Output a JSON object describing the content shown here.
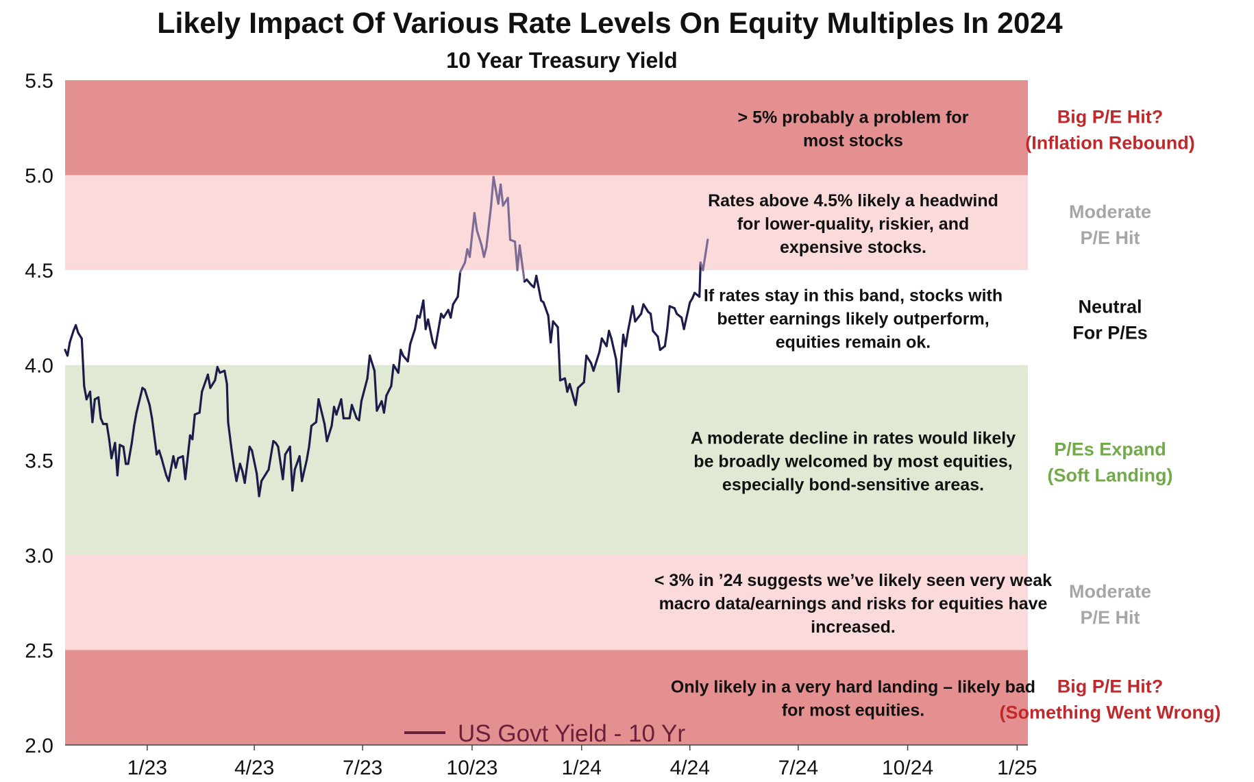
{
  "chart_data": {
    "type": "line",
    "title": "Likely Impact Of Various Rate Levels On Equity Multiples In 2024",
    "subtitle": "10 Year Treasury Yield",
    "xlabel": "",
    "ylabel": "",
    "ylim": [
      2.0,
      5.5
    ],
    "yticks": [
      "5.5",
      "5.0",
      "4.5",
      "4.0",
      "3.5",
      "3.0",
      "2.5",
      "2.0"
    ],
    "xticks": [
      {
        "label": "1/23",
        "x": "2023-01-01"
      },
      {
        "label": "4/23",
        "x": "2023-04-01"
      },
      {
        "label": "7/23",
        "x": "2023-07-01"
      },
      {
        "label": "10/23",
        "x": "2023-10-01"
      },
      {
        "label": "1/24",
        "x": "2024-01-01"
      },
      {
        "label": "4/24",
        "x": "2024-04-01"
      },
      {
        "label": "7/24",
        "x": "2024-07-01"
      },
      {
        "label": "10/24",
        "x": "2024-10-01"
      },
      {
        "label": "1/25",
        "x": "2025-01-01"
      }
    ],
    "xlim": [
      "2022-10-24",
      "2025-01-10"
    ],
    "grid": false,
    "legend": {
      "position": "bottom-center",
      "label": "US Govt Yield - 10 Yr",
      "color": "#6b1f3a"
    },
    "line_colors": {
      "main": "#1c1c4a",
      "in_upper_band": "#7d6b96"
    },
    "bands": [
      {
        "from": 5.0,
        "to": 5.5,
        "color": "#e49090",
        "note": [
          "> 5% probably a problem for",
          "most stocks"
        ],
        "side_label": [
          "Big P/E Hit?",
          "(Inflation Rebound)"
        ],
        "side_color": "#c0282b"
      },
      {
        "from": 4.5,
        "to": 5.0,
        "color": "#fadadb",
        "note": [
          "Rates above 4.5% likely a headwind",
          "for lower-quality, riskier, and",
          "expensive stocks."
        ],
        "side_label": [
          "Moderate",
          "P/E Hit"
        ],
        "side_color": "#a6a6a6"
      },
      {
        "from": 4.0,
        "to": 4.5,
        "color": "#ffffff",
        "note": [
          "If rates stay in this band, stocks with",
          "better earnings likely outperform,",
          "equities remain ok."
        ],
        "side_label": [
          "Neutral",
          "For P/Es"
        ],
        "side_color": "#111111"
      },
      {
        "from": 3.0,
        "to": 4.0,
        "color": "#dfe9d3",
        "note": [
          "A moderate decline in rates would likely",
          "be broadly welcomed by most equities,",
          "especially bond-sensitive areas."
        ],
        "side_label": [
          "P/Es Expand",
          "(Soft Landing)"
        ],
        "side_color": "#72a94a"
      },
      {
        "from": 2.5,
        "to": 3.0,
        "color": "#fadadb",
        "note": [
          "< 3% in ’24 suggests we’ve likely seen very weak",
          "macro data/earnings and risks for equities have",
          "increased."
        ],
        "side_label": [
          "Moderate",
          "P/E Hit"
        ],
        "side_color": "#a6a6a6"
      },
      {
        "from": 2.0,
        "to": 2.5,
        "color": "#e49090",
        "note": [
          "Only likely in a very hard landing – likely bad",
          "for most equities."
        ],
        "side_label": [
          "Big P/E Hit?",
          "(Something Went Wrong)"
        ],
        "side_color": "#c0282b"
      }
    ],
    "series": [
      {
        "name": "US Govt Yield - 10 Yr",
        "points": [
          [
            "2022-10-24",
            4.08
          ],
          [
            "2022-10-26",
            4.05
          ],
          [
            "2022-10-28",
            4.12
          ],
          [
            "2022-10-31",
            4.18
          ],
          [
            "2022-11-02",
            4.21
          ],
          [
            "2022-11-04",
            4.17
          ],
          [
            "2022-11-07",
            4.14
          ],
          [
            "2022-11-09",
            3.89
          ],
          [
            "2022-11-11",
            3.82
          ],
          [
            "2022-11-14",
            3.86
          ],
          [
            "2022-11-16",
            3.7
          ],
          [
            "2022-11-18",
            3.82
          ],
          [
            "2022-11-21",
            3.83
          ],
          [
            "2022-11-23",
            3.72
          ],
          [
            "2022-11-25",
            3.69
          ],
          [
            "2022-11-28",
            3.69
          ],
          [
            "2022-11-30",
            3.61
          ],
          [
            "2022-12-02",
            3.51
          ],
          [
            "2022-12-05",
            3.59
          ],
          [
            "2022-12-07",
            3.42
          ],
          [
            "2022-12-09",
            3.58
          ],
          [
            "2022-12-12",
            3.57
          ],
          [
            "2022-12-14",
            3.48
          ],
          [
            "2022-12-16",
            3.48
          ],
          [
            "2022-12-19",
            3.59
          ],
          [
            "2022-12-21",
            3.68
          ],
          [
            "2022-12-23",
            3.75
          ],
          [
            "2022-12-28",
            3.88
          ],
          [
            "2022-12-30",
            3.87
          ],
          [
            "2023-01-03",
            3.79
          ],
          [
            "2023-01-05",
            3.72
          ],
          [
            "2023-01-09",
            3.53
          ],
          [
            "2023-01-11",
            3.55
          ],
          [
            "2023-01-13",
            3.51
          ],
          [
            "2023-01-17",
            3.42
          ],
          [
            "2023-01-19",
            3.39
          ],
          [
            "2023-01-23",
            3.52
          ],
          [
            "2023-01-25",
            3.46
          ],
          [
            "2023-01-27",
            3.51
          ],
          [
            "2023-01-31",
            3.52
          ],
          [
            "2023-02-02",
            3.4
          ],
          [
            "2023-02-06",
            3.63
          ],
          [
            "2023-02-08",
            3.61
          ],
          [
            "2023-02-10",
            3.74
          ],
          [
            "2023-02-14",
            3.75
          ],
          [
            "2023-02-16",
            3.86
          ],
          [
            "2023-02-21",
            3.95
          ],
          [
            "2023-02-23",
            3.88
          ],
          [
            "2023-02-27",
            3.92
          ],
          [
            "2023-03-01",
            3.99
          ],
          [
            "2023-03-03",
            3.96
          ],
          [
            "2023-03-07",
            3.97
          ],
          [
            "2023-03-09",
            3.9
          ],
          [
            "2023-03-10",
            3.7
          ],
          [
            "2023-03-13",
            3.55
          ],
          [
            "2023-03-15",
            3.46
          ],
          [
            "2023-03-17",
            3.39
          ],
          [
            "2023-03-20",
            3.48
          ],
          [
            "2023-03-22",
            3.44
          ],
          [
            "2023-03-24",
            3.38
          ],
          [
            "2023-03-28",
            3.57
          ],
          [
            "2023-03-30",
            3.55
          ],
          [
            "2023-04-03",
            3.43
          ],
          [
            "2023-04-05",
            3.31
          ],
          [
            "2023-04-07",
            3.39
          ],
          [
            "2023-04-11",
            3.43
          ],
          [
            "2023-04-13",
            3.45
          ],
          [
            "2023-04-17",
            3.6
          ],
          [
            "2023-04-19",
            3.59
          ],
          [
            "2023-04-21",
            3.57
          ],
          [
            "2023-04-25",
            3.4
          ],
          [
            "2023-04-27",
            3.53
          ],
          [
            "2023-05-01",
            3.57
          ],
          [
            "2023-05-03",
            3.34
          ],
          [
            "2023-05-05",
            3.45
          ],
          [
            "2023-05-09",
            3.52
          ],
          [
            "2023-05-11",
            3.39
          ],
          [
            "2023-05-15",
            3.5
          ],
          [
            "2023-05-17",
            3.57
          ],
          [
            "2023-05-19",
            3.68
          ],
          [
            "2023-05-23",
            3.7
          ],
          [
            "2023-05-25",
            3.82
          ],
          [
            "2023-05-30",
            3.69
          ],
          [
            "2023-06-01",
            3.6
          ],
          [
            "2023-06-05",
            3.68
          ],
          [
            "2023-06-07",
            3.78
          ],
          [
            "2023-06-09",
            3.74
          ],
          [
            "2023-06-13",
            3.82
          ],
          [
            "2023-06-15",
            3.72
          ],
          [
            "2023-06-20",
            3.72
          ],
          [
            "2023-06-22",
            3.79
          ],
          [
            "2023-06-26",
            3.72
          ],
          [
            "2023-06-28",
            3.71
          ],
          [
            "2023-06-30",
            3.81
          ],
          [
            "2023-07-05",
            3.93
          ],
          [
            "2023-07-07",
            4.05
          ],
          [
            "2023-07-11",
            3.97
          ],
          [
            "2023-07-13",
            3.76
          ],
          [
            "2023-07-17",
            3.81
          ],
          [
            "2023-07-19",
            3.75
          ],
          [
            "2023-07-21",
            3.84
          ],
          [
            "2023-07-25",
            3.89
          ],
          [
            "2023-07-27",
            4.0
          ],
          [
            "2023-07-31",
            3.96
          ],
          [
            "2023-08-02",
            4.08
          ],
          [
            "2023-08-04",
            4.05
          ],
          [
            "2023-08-08",
            4.02
          ],
          [
            "2023-08-10",
            4.11
          ],
          [
            "2023-08-14",
            4.19
          ],
          [
            "2023-08-16",
            4.26
          ],
          [
            "2023-08-18",
            4.25
          ],
          [
            "2023-08-21",
            4.34
          ],
          [
            "2023-08-23",
            4.19
          ],
          [
            "2023-08-25",
            4.24
          ],
          [
            "2023-08-29",
            4.12
          ],
          [
            "2023-08-31",
            4.09
          ],
          [
            "2023-09-05",
            4.27
          ],
          [
            "2023-09-07",
            4.25
          ],
          [
            "2023-09-11",
            4.29
          ],
          [
            "2023-09-13",
            4.25
          ],
          [
            "2023-09-15",
            4.32
          ],
          [
            "2023-09-19",
            4.36
          ],
          [
            "2023-09-21",
            4.49
          ],
          [
            "2023-09-25",
            4.54
          ],
          [
            "2023-09-27",
            4.61
          ],
          [
            "2023-09-29",
            4.57
          ],
          [
            "2023-10-03",
            4.8
          ],
          [
            "2023-10-05",
            4.71
          ],
          [
            "2023-10-09",
            4.63
          ],
          [
            "2023-10-11",
            4.57
          ],
          [
            "2023-10-13",
            4.62
          ],
          [
            "2023-10-17",
            4.84
          ],
          [
            "2023-10-19",
            4.99
          ],
          [
            "2023-10-23",
            4.85
          ],
          [
            "2023-10-25",
            4.95
          ],
          [
            "2023-10-27",
            4.84
          ],
          [
            "2023-10-31",
            4.88
          ],
          [
            "2023-11-02",
            4.66
          ],
          [
            "2023-11-06",
            4.65
          ],
          [
            "2023-11-08",
            4.5
          ],
          [
            "2023-11-10",
            4.63
          ],
          [
            "2023-11-14",
            4.44
          ],
          [
            "2023-11-16",
            4.45
          ],
          [
            "2023-11-20",
            4.42
          ],
          [
            "2023-11-22",
            4.41
          ],
          [
            "2023-11-24",
            4.47
          ],
          [
            "2023-11-28",
            4.34
          ],
          [
            "2023-11-30",
            4.33
          ],
          [
            "2023-12-04",
            4.26
          ],
          [
            "2023-12-06",
            4.12
          ],
          [
            "2023-12-08",
            4.23
          ],
          [
            "2023-12-12",
            4.2
          ],
          [
            "2023-12-14",
            3.92
          ],
          [
            "2023-12-18",
            3.93
          ],
          [
            "2023-12-20",
            3.86
          ],
          [
            "2023-12-22",
            3.9
          ],
          [
            "2023-12-27",
            3.79
          ],
          [
            "2023-12-29",
            3.88
          ],
          [
            "2024-01-03",
            3.91
          ],
          [
            "2024-01-05",
            4.05
          ],
          [
            "2024-01-09",
            4.01
          ],
          [
            "2024-01-11",
            3.97
          ],
          [
            "2024-01-16",
            4.07
          ],
          [
            "2024-01-18",
            4.14
          ],
          [
            "2024-01-22",
            4.1
          ],
          [
            "2024-01-24",
            4.18
          ],
          [
            "2024-01-26",
            4.14
          ],
          [
            "2024-01-30",
            4.03
          ],
          [
            "2024-02-01",
            3.86
          ],
          [
            "2024-02-05",
            4.16
          ],
          [
            "2024-02-07",
            4.1
          ],
          [
            "2024-02-09",
            4.18
          ],
          [
            "2024-02-13",
            4.31
          ],
          [
            "2024-02-15",
            4.23
          ],
          [
            "2024-02-20",
            4.27
          ],
          [
            "2024-02-22",
            4.32
          ],
          [
            "2024-02-26",
            4.28
          ],
          [
            "2024-02-28",
            4.27
          ],
          [
            "2024-03-01",
            4.18
          ],
          [
            "2024-03-05",
            4.15
          ],
          [
            "2024-03-07",
            4.08
          ],
          [
            "2024-03-11",
            4.1
          ],
          [
            "2024-03-13",
            4.19
          ],
          [
            "2024-03-15",
            4.31
          ],
          [
            "2024-03-19",
            4.3
          ],
          [
            "2024-03-21",
            4.27
          ],
          [
            "2024-03-25",
            4.25
          ],
          [
            "2024-03-27",
            4.19
          ],
          [
            "2024-04-01",
            4.33
          ],
          [
            "2024-04-03",
            4.35
          ],
          [
            "2024-04-05",
            4.38
          ],
          [
            "2024-04-09",
            4.36
          ],
          [
            "2024-04-10",
            4.54
          ],
          [
            "2024-04-12",
            4.5
          ],
          [
            "2024-04-16",
            4.66
          ]
        ]
      }
    ]
  }
}
